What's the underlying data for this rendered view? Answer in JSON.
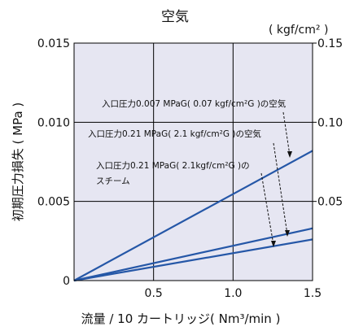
{
  "chart_data": {
    "type": "line",
    "title": "空気",
    "xlabel": "流量 / 10 カートリッジ( Nm³/min )",
    "ylabel": "初期圧力損失 ( MPa )",
    "y2label": "( kgf/cm² )",
    "xlim": [
      0,
      1.5
    ],
    "ylim": [
      0,
      0.015
    ],
    "y2lim": [
      0,
      0.15
    ],
    "x_ticks": [
      "0.5",
      "1.0",
      "1.5"
    ],
    "y_ticks": [
      "0",
      "0.005",
      "0.010",
      "0.015"
    ],
    "y2_ticks": [
      "0.05",
      "0.10",
      "0.15"
    ],
    "grid": true,
    "series": [
      {
        "name": "入口圧力0.007 MPaG( 0.07 kgf/cm²G )の空気",
        "x": [
          0,
          1.5
        ],
        "y": [
          0,
          0.0082
        ]
      },
      {
        "name": "入口圧力0.21 MPaG( 2.1 kgf/cm²G )の空気",
        "x": [
          0,
          1.5
        ],
        "y": [
          0,
          0.0033
        ]
      },
      {
        "name": "入口圧力0.21 MPaG( 2.1kgf/cm²G )の スチーム",
        "x": [
          0,
          1.5
        ],
        "y": [
          0,
          0.0026
        ]
      }
    ],
    "annotations": [
      "入口圧力0.007 MPaG( 0.07 kgf/cm²G )の空気",
      "入口圧力0.21 MPaG( 2.1 kgf/cm²G )の空気",
      "入口圧力0.21 MPaG( 2.1kgf/cm²G )の",
      "スチーム"
    ],
    "colors": {
      "line": "#2557a7",
      "plot_bg": "#e6e6f2",
      "grid": "#000000"
    }
  }
}
